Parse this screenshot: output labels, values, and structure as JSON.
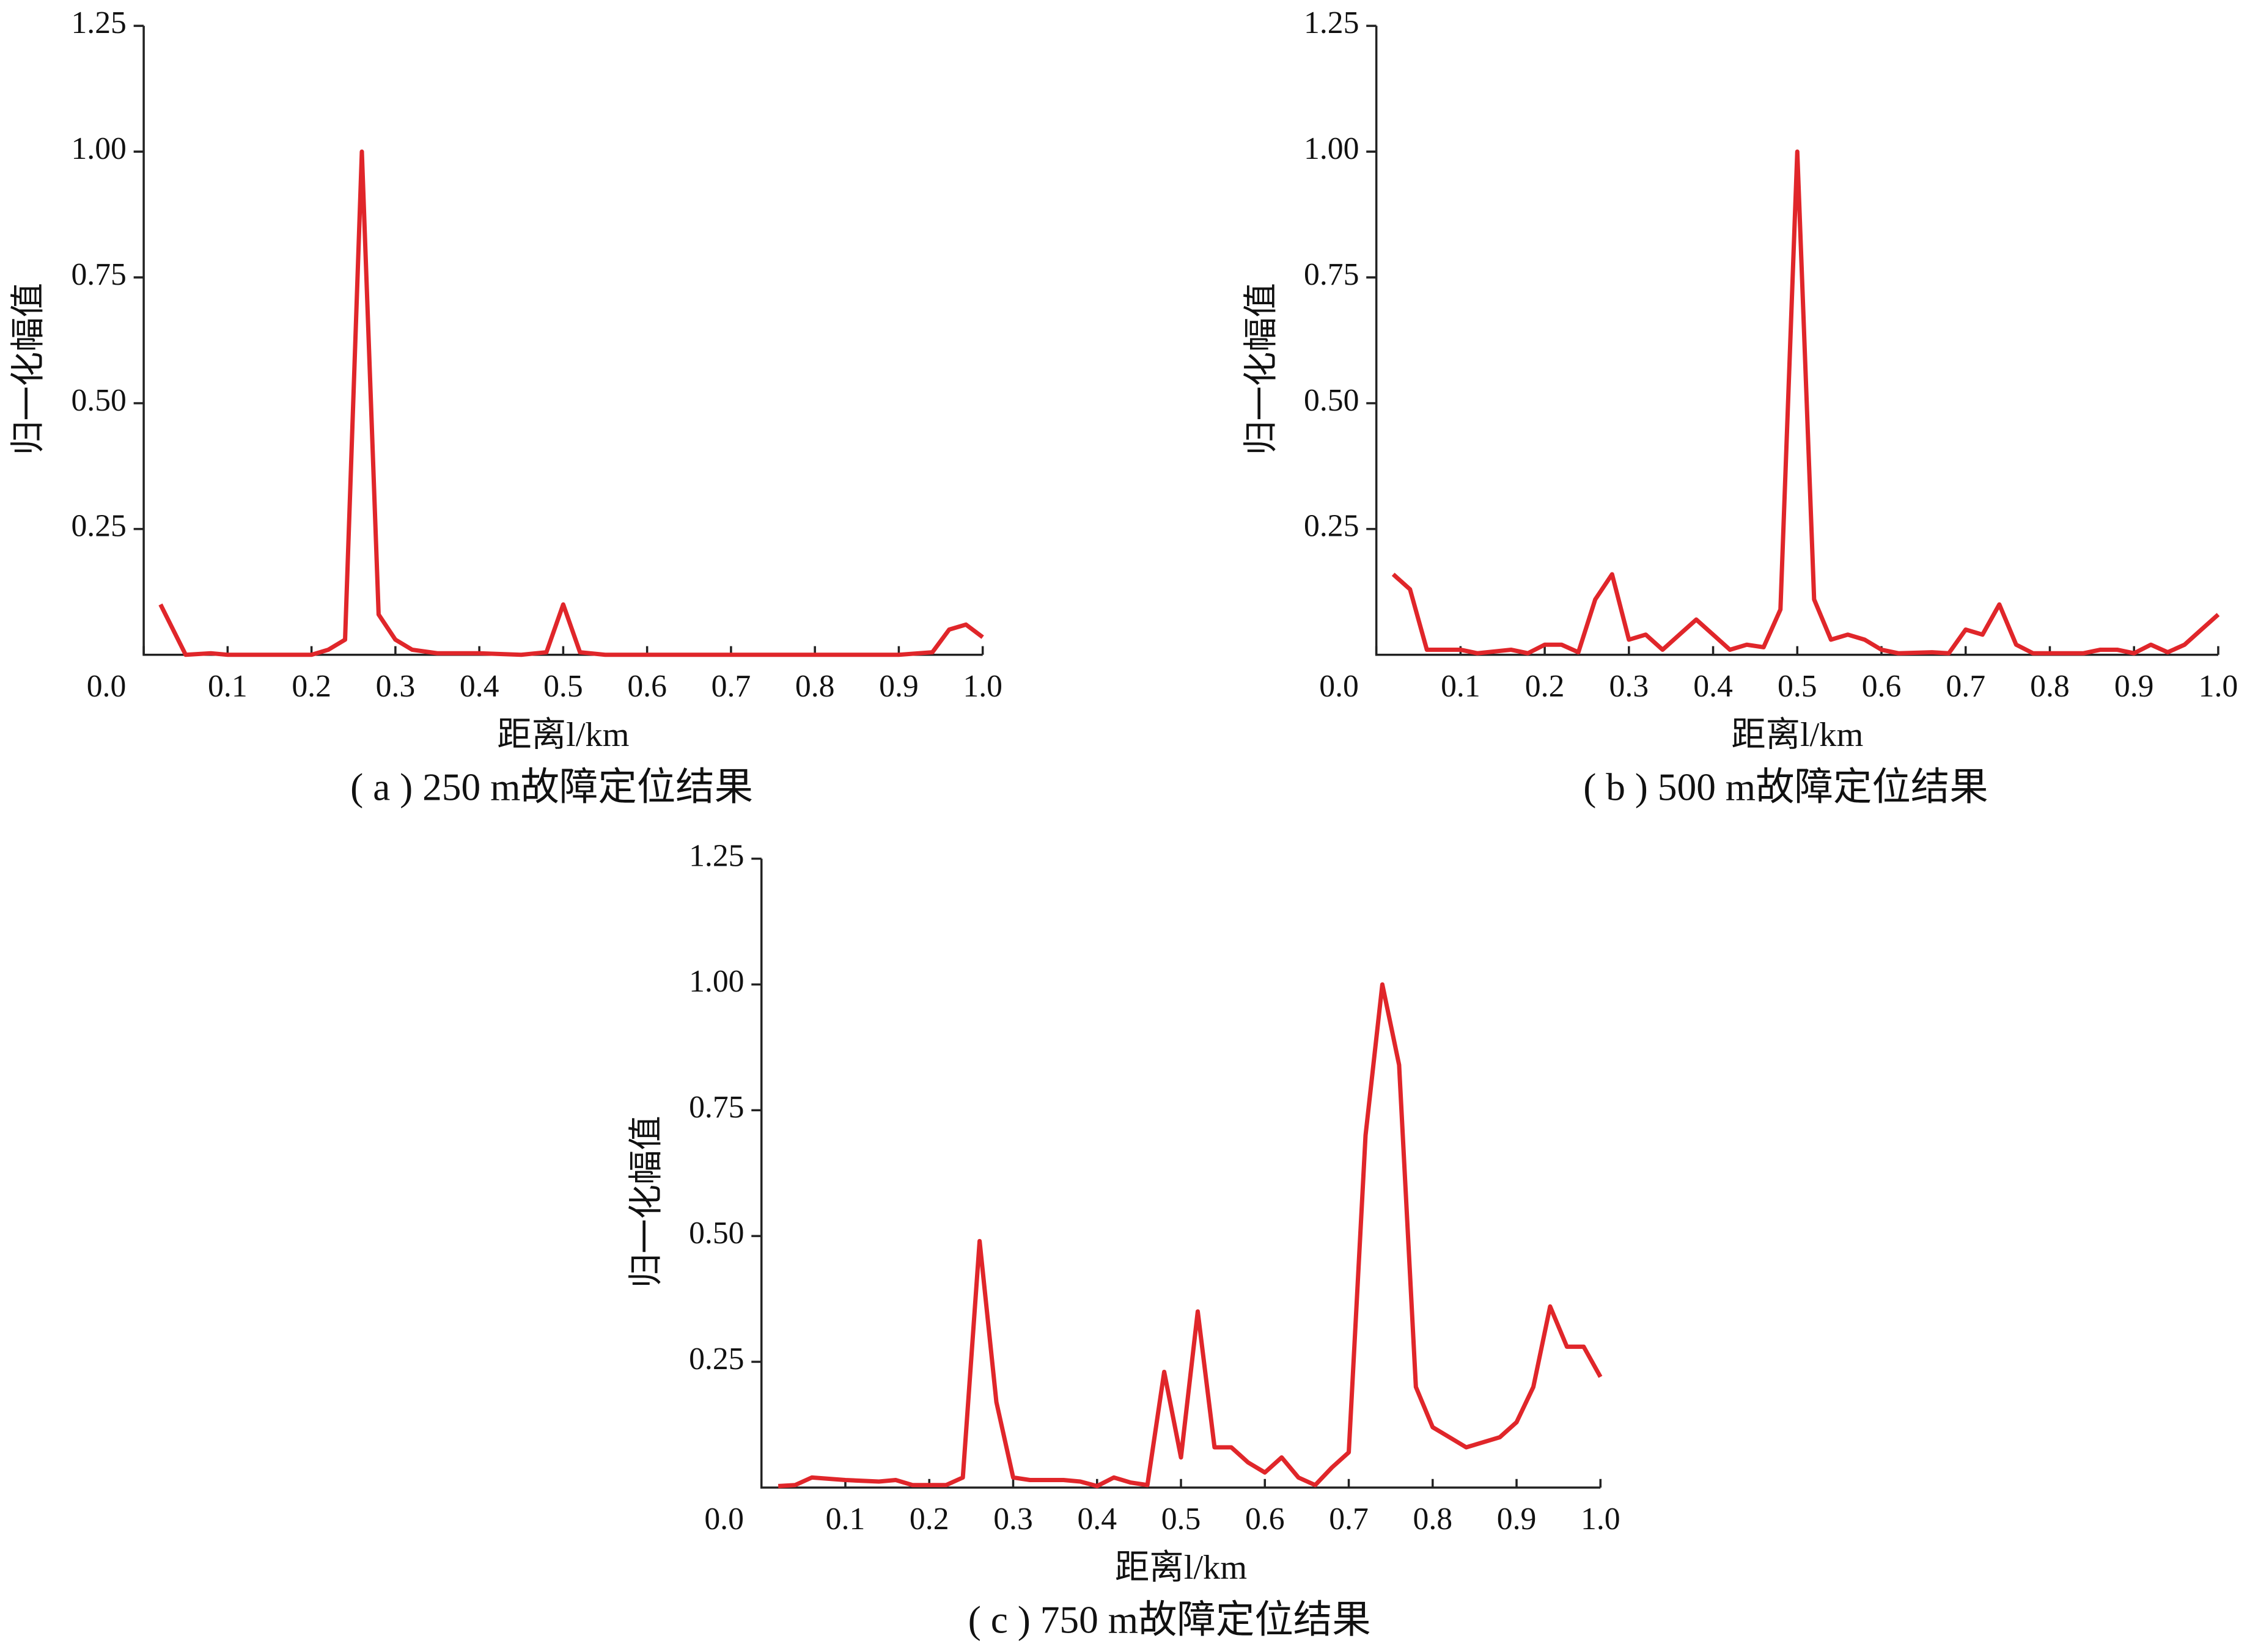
{
  "chart_data": [
    {
      "type": "line",
      "caption": "( a ) 250 m故障定位结果",
      "x_label": "距离l/km",
      "y_label": "归一化幅值",
      "color": "#e0262a",
      "x": [
        0.02,
        0.05,
        0.08,
        0.1,
        0.15,
        0.2,
        0.22,
        0.24,
        0.26,
        0.28,
        0.3,
        0.32,
        0.35,
        0.4,
        0.45,
        0.48,
        0.5,
        0.52,
        0.55,
        0.6,
        0.7,
        0.8,
        0.9,
        0.94,
        0.96,
        0.98,
        1.0
      ],
      "values": [
        0.1,
        0,
        0.003,
        0,
        0,
        0,
        0.01,
        0.03,
        1.0,
        0.08,
        0.03,
        0.01,
        0.003,
        0.003,
        0,
        0.005,
        0.1,
        0.005,
        0,
        0,
        0,
        0,
        0,
        0.005,
        0.05,
        0.06,
        0.035
      ],
      "xlim": [
        0,
        1
      ],
      "ylim": [
        0,
        1.25
      ],
      "xticks": [
        {
          "value": 0,
          "label": "0.0"
        },
        0.1,
        0.2,
        0.3,
        0.4,
        0.5,
        0.6,
        0.7,
        0.8,
        0.9,
        {
          "value": 1,
          "label": "1.0"
        }
      ],
      "yticks": [
        0.25,
        {
          "value": 0.5,
          "label": "0.50"
        },
        0.75,
        {
          "value": 1,
          "label": "1.00"
        },
        1.25
      ]
    },
    {
      "type": "line",
      "caption": "( b ) 500 m故障定位结果",
      "x_label": "距离l/km",
      "y_label": "归一化幅值",
      "color": "#e0262a",
      "x": [
        0.02,
        0.04,
        0.06,
        0.1,
        0.12,
        0.16,
        0.18,
        0.2,
        0.22,
        0.24,
        0.26,
        0.28,
        0.3,
        0.32,
        0.34,
        0.36,
        0.38,
        0.4,
        0.42,
        0.44,
        0.46,
        0.48,
        0.5,
        0.52,
        0.54,
        0.56,
        0.58,
        0.6,
        0.62,
        0.66,
        0.68,
        0.7,
        0.72,
        0.74,
        0.76,
        0.78,
        0.84,
        0.86,
        0.88,
        0.9,
        0.92,
        0.94,
        0.96,
        0.98,
        1.0
      ],
      "values": [
        0.16,
        0.13,
        0.01,
        0.01,
        0.003,
        0.01,
        0.003,
        0.02,
        0.02,
        0.005,
        0.11,
        0.16,
        0.03,
        0.04,
        0.01,
        0.04,
        0.07,
        0.04,
        0.01,
        0.02,
        0.015,
        0.09,
        1.0,
        0.11,
        0.03,
        0.04,
        0.03,
        0.01,
        0.003,
        0.005,
        0.003,
        0.05,
        0.04,
        0.1,
        0.02,
        0.003,
        0.003,
        0.01,
        0.01,
        0.003,
        0.02,
        0.005,
        0.02,
        0.05,
        0.08
      ],
      "xlim": [
        0,
        1
      ],
      "ylim": [
        0,
        1.25
      ],
      "xticks": [
        {
          "value": 0,
          "label": "0.0"
        },
        0.1,
        0.2,
        0.3,
        0.4,
        0.5,
        0.6,
        0.7,
        0.8,
        0.9,
        {
          "value": 1,
          "label": "1.0"
        }
      ],
      "yticks": [
        0.25,
        {
          "value": 0.5,
          "label": "0.50"
        },
        0.75,
        {
          "value": 1,
          "label": "1.00"
        },
        1.25
      ]
    },
    {
      "type": "line",
      "caption": "( c ) 750 m故障定位结果",
      "x_label": "距离l/km",
      "y_label": "归一化幅值",
      "color": "#e0262a",
      "x": [
        0.02,
        0.04,
        0.06,
        0.1,
        0.14,
        0.16,
        0.18,
        0.2,
        0.22,
        0.24,
        0.26,
        0.28,
        0.3,
        0.32,
        0.36,
        0.38,
        0.4,
        0.42,
        0.44,
        0.46,
        0.48,
        0.5,
        0.52,
        0.54,
        0.56,
        0.58,
        0.6,
        0.62,
        0.64,
        0.66,
        0.68,
        0.7,
        0.72,
        0.74,
        0.76,
        0.78,
        0.8,
        0.82,
        0.84,
        0.86,
        0.88,
        0.9,
        0.92,
        0.94,
        0.96,
        0.98,
        1.0
      ],
      "values": [
        0.003,
        0.005,
        0.02,
        0.015,
        0.012,
        0.015,
        0.005,
        0.005,
        0.005,
        0.02,
        0.49,
        0.17,
        0.02,
        0.015,
        0.015,
        0.012,
        0.003,
        0.02,
        0.01,
        0.005,
        0.23,
        0.06,
        0.35,
        0.08,
        0.08,
        0.05,
        0.03,
        0.06,
        0.02,
        0.005,
        0.04,
        0.07,
        0.7,
        1.0,
        0.84,
        0.2,
        0.12,
        0.1,
        0.08,
        0.09,
        0.1,
        0.13,
        0.2,
        0.36,
        0.28,
        0.28,
        0.22
      ],
      "xlim": [
        0,
        1
      ],
      "ylim": [
        0,
        1.25
      ],
      "xticks": [
        {
          "value": 0,
          "label": "0.0"
        },
        0.1,
        0.2,
        0.3,
        0.4,
        0.5,
        0.6,
        0.7,
        0.8,
        0.9,
        {
          "value": 1,
          "label": "1.0"
        }
      ],
      "yticks": [
        0.25,
        {
          "value": 0.5,
          "label": "0.50"
        },
        0.75,
        {
          "value": 1,
          "label": "1.00"
        },
        1.25
      ]
    }
  ]
}
